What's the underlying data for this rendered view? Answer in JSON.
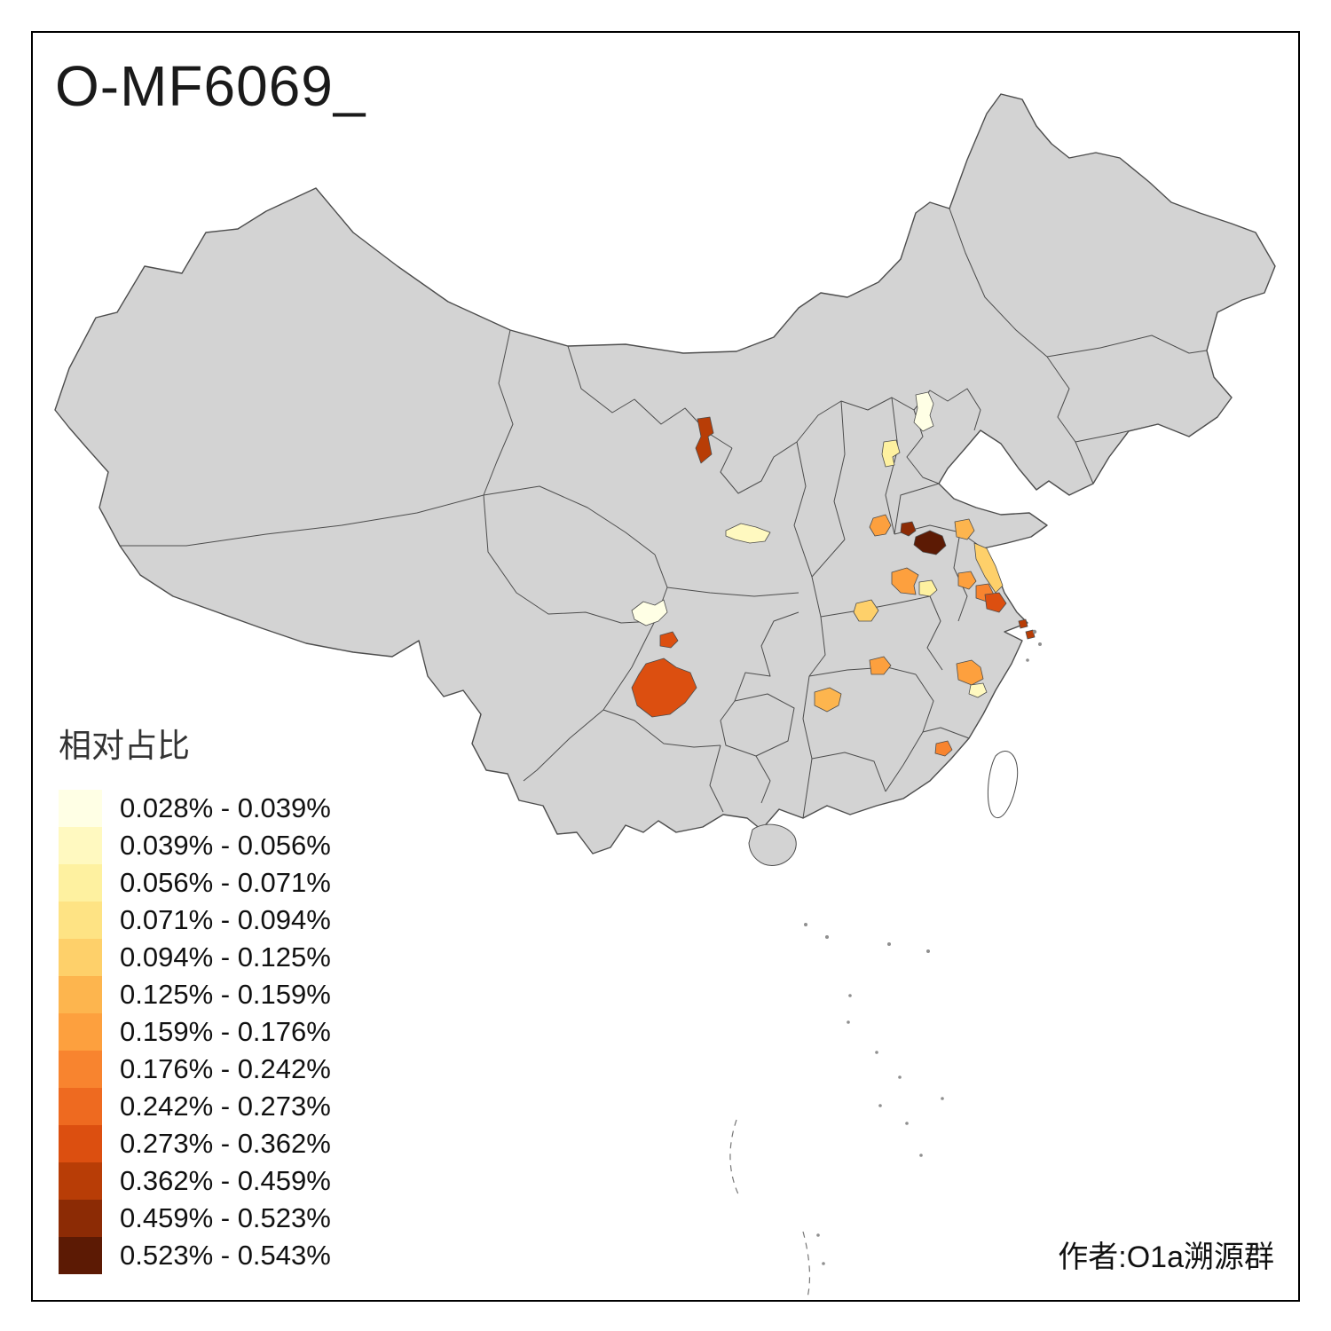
{
  "title": "O-MF6069_",
  "attribution": "作者:O1a溯源群",
  "legend": {
    "title": "相对占比",
    "bins": [
      {
        "label": "0.028% - 0.039%",
        "color": "#FFFFE5"
      },
      {
        "label": "0.039% - 0.056%",
        "color": "#FFF9C0"
      },
      {
        "label": "0.056% - 0.071%",
        "color": "#FEF1A0"
      },
      {
        "label": "0.071% - 0.094%",
        "color": "#FEE384"
      },
      {
        "label": "0.094% - 0.125%",
        "color": "#FED06A"
      },
      {
        "label": "0.125% - 0.159%",
        "color": "#FDB54E"
      },
      {
        "label": "0.159% - 0.176%",
        "color": "#FDA03E"
      },
      {
        "label": "0.176% - 0.242%",
        "color": "#F8842F"
      },
      {
        "label": "0.242% - 0.273%",
        "color": "#EE6A20"
      },
      {
        "label": "0.273% - 0.362%",
        "color": "#DC4F10"
      },
      {
        "label": "0.362% - 0.459%",
        "color": "#B83D06"
      },
      {
        "label": "0.459% - 0.523%",
        "color": "#8C2B05"
      },
      {
        "label": "0.523% - 0.543%",
        "color": "#5C1A04"
      }
    ]
  },
  "map": {
    "land_color": "#D3D3D3",
    "border_color": "#4D4D4D",
    "sea_color": "#FFFFFF",
    "regions": [
      {
        "id": "region-1",
        "bin": 10
      },
      {
        "id": "region-2",
        "bin": 0
      },
      {
        "id": "region-3",
        "bin": 2
      },
      {
        "id": "region-4",
        "bin": 1
      },
      {
        "id": "region-5",
        "bin": 6
      },
      {
        "id": "region-6",
        "bin": 11
      },
      {
        "id": "region-7",
        "bin": 12
      },
      {
        "id": "region-8",
        "bin": 5
      },
      {
        "id": "region-9",
        "bin": 4
      },
      {
        "id": "region-10",
        "bin": 6
      },
      {
        "id": "region-11",
        "bin": 2
      },
      {
        "id": "region-12",
        "bin": 6
      },
      {
        "id": "region-13",
        "bin": 7
      },
      {
        "id": "region-14",
        "bin": 9
      },
      {
        "id": "region-15",
        "bin": 10
      },
      {
        "id": "region-16",
        "bin": 4
      },
      {
        "id": "region-17",
        "bin": 0
      },
      {
        "id": "region-18",
        "bin": 9
      },
      {
        "id": "region-19",
        "bin": 9
      },
      {
        "id": "region-20",
        "bin": 5
      },
      {
        "id": "region-21",
        "bin": 6
      },
      {
        "id": "region-22",
        "bin": 6
      },
      {
        "id": "region-23",
        "bin": 1
      },
      {
        "id": "region-24",
        "bin": 7
      }
    ]
  }
}
